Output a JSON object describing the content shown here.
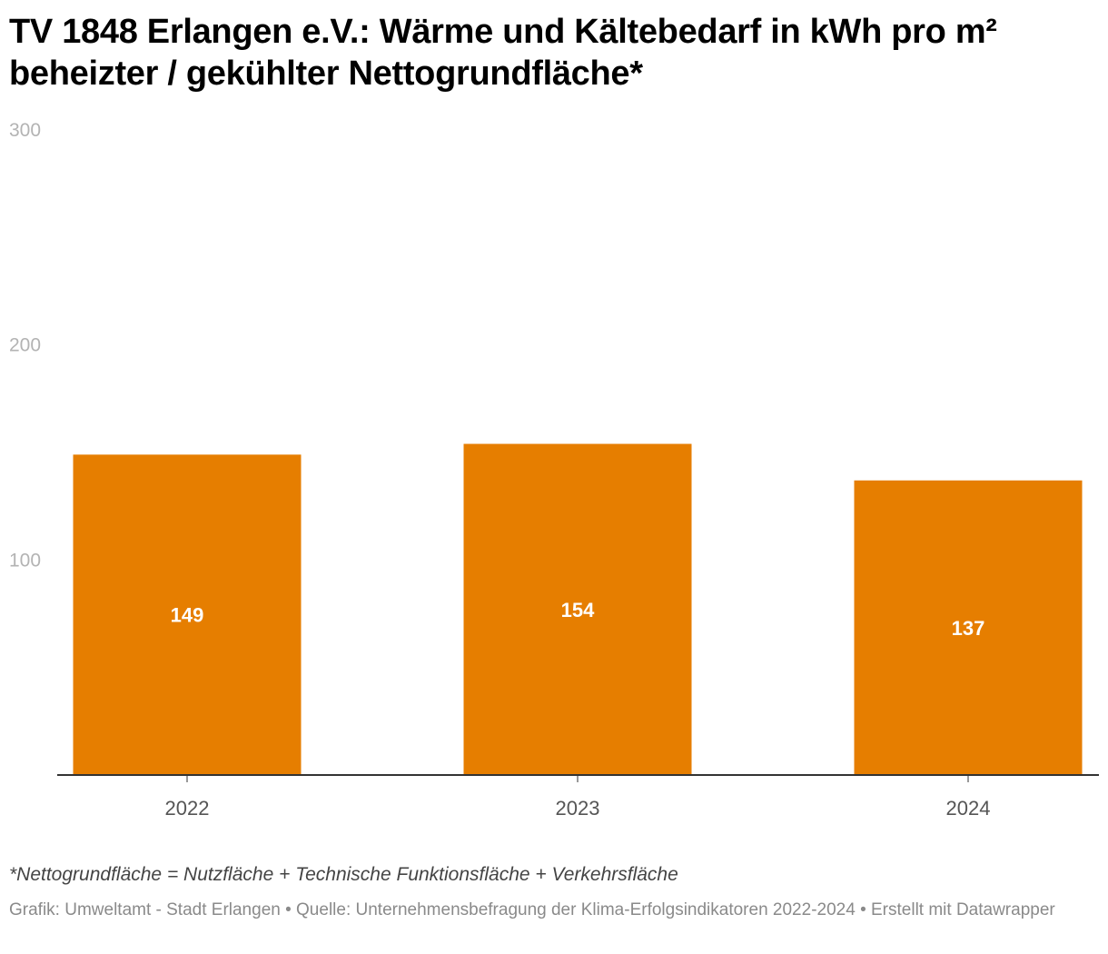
{
  "chart_data": {
    "type": "bar",
    "title": "TV 1848 Erlangen e.V.: Wärme und Kältebedarf in kWh pro m² beheizter / gekühlter Nettogrundfläche*",
    "categories": [
      "2022",
      "2023",
      "2024"
    ],
    "values": [
      149,
      154,
      137
    ],
    "value_labels": [
      "149",
      "154",
      "137"
    ],
    "y_ticks": [
      100,
      200,
      300
    ],
    "y_tick_labels": [
      "100",
      "200",
      "300"
    ],
    "ylim": [
      0,
      300
    ],
    "grid": false,
    "legend": "none",
    "bar_color": "#e67e00",
    "footnote": "*Nettogrundfläche = Nutzfläche + Technische Funktionsfläche + Verkehrsfläche",
    "source": "Grafik: Umweltamt - Stadt Erlangen  • Quelle: Unternehmensbefragung der Klima-Erfolgsindikatoren 2022-2024 • Erstellt mit Datawrapper"
  }
}
